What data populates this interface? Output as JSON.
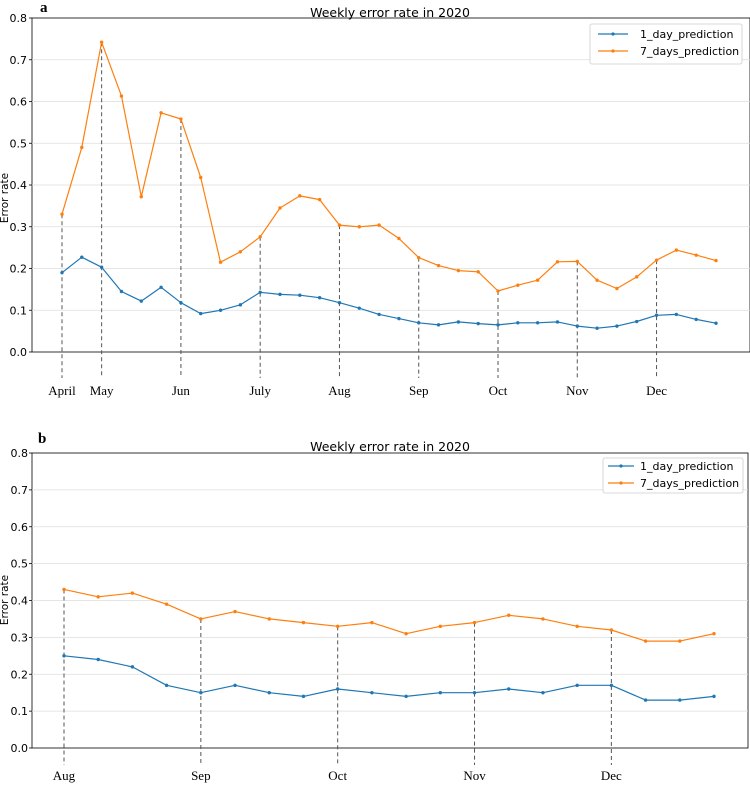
{
  "figure": {
    "width": 750,
    "height": 790
  },
  "colors": {
    "series1": "#1f77b4",
    "series2": "#ff7f0e",
    "axis": "#000000",
    "grid": "#dddddd",
    "vline": "#555555"
  },
  "chart_data": [
    {
      "panel_label": "a",
      "type": "line",
      "title": "Weekly error rate in 2020",
      "ylabel": "Error rate",
      "xlabel": "",
      "ylim": [
        0,
        0.8
      ],
      "yticks": [
        "0.0",
        "0.1",
        "0.2",
        "0.3",
        "0.4",
        "0.5",
        "0.6",
        "0.7",
        "0.8"
      ],
      "n_points": 34,
      "grid": true,
      "legend": {
        "position": "top-right",
        "entries": [
          "1_day_prediction",
          "7_days_prediction"
        ]
      },
      "series": [
        {
          "name": "1_day_prediction",
          "values": [
            0.19,
            0.227,
            0.203,
            0.145,
            0.122,
            0.155,
            0.118,
            0.092,
            0.1,
            0.113,
            0.143,
            0.138,
            0.136,
            0.13,
            0.118,
            0.105,
            0.09,
            0.08,
            0.07,
            0.065,
            0.072,
            0.068,
            0.065,
            0.07,
            0.07,
            0.072,
            0.062,
            0.057,
            0.062,
            0.073,
            0.088,
            0.09,
            0.078,
            0.069
          ]
        },
        {
          "name": "7_days_prediction",
          "values": [
            0.33,
            0.49,
            0.742,
            0.613,
            0.372,
            0.573,
            0.558,
            0.418,
            0.215,
            0.24,
            0.276,
            0.345,
            0.374,
            0.365,
            0.304,
            0.3,
            0.304,
            0.272,
            0.226,
            0.207,
            0.195,
            0.192,
            0.146,
            0.16,
            0.172,
            0.216,
            0.217,
            0.172,
            0.152,
            0.18,
            0.22,
            0.244,
            0.232,
            0.219
          ]
        }
      ],
      "month_markers": [
        {
          "label": "April",
          "index": 0
        },
        {
          "label": "May",
          "index": 2
        },
        {
          "label": "Jun",
          "index": 6
        },
        {
          "label": "July",
          "index": 10
        },
        {
          "label": "Aug",
          "index": 14
        },
        {
          "label": "Sep",
          "index": 18
        },
        {
          "label": "Oct",
          "index": 22
        },
        {
          "label": "Nov",
          "index": 26
        },
        {
          "label": "Dec",
          "index": 30
        }
      ]
    },
    {
      "panel_label": "b",
      "type": "line",
      "title": "Weekly error rate in 2020",
      "ylabel": "Error rate",
      "xlabel": "",
      "ylim": [
        0,
        0.8
      ],
      "yticks": [
        "0.0",
        "0.1",
        "0.2",
        "0.3",
        "0.4",
        "0.5",
        "0.6",
        "0.7",
        "0.8"
      ],
      "n_points": 20,
      "grid": true,
      "legend": {
        "position": "top-right",
        "entries": [
          "1_day_prediction",
          "7_days_prediction"
        ]
      },
      "series": [
        {
          "name": "1_day_prediction",
          "values": [
            0.25,
            0.24,
            0.22,
            0.17,
            0.15,
            0.17,
            0.15,
            0.14,
            0.16,
            0.15,
            0.14,
            0.15,
            0.15,
            0.16,
            0.15,
            0.17,
            0.17,
            0.13,
            0.13,
            0.14
          ]
        },
        {
          "name": "7_days_prediction",
          "values": [
            0.43,
            0.41,
            0.42,
            0.39,
            0.35,
            0.37,
            0.35,
            0.34,
            0.33,
            0.34,
            0.31,
            0.33,
            0.34,
            0.36,
            0.35,
            0.33,
            0.32,
            0.29,
            0.29,
            0.31
          ]
        }
      ],
      "month_markers": [
        {
          "label": "Aug",
          "index": 0
        },
        {
          "label": "Sep",
          "index": 4
        },
        {
          "label": "Oct",
          "index": 8
        },
        {
          "label": "Nov",
          "index": 12
        },
        {
          "label": "Dec",
          "index": 16
        }
      ]
    }
  ]
}
